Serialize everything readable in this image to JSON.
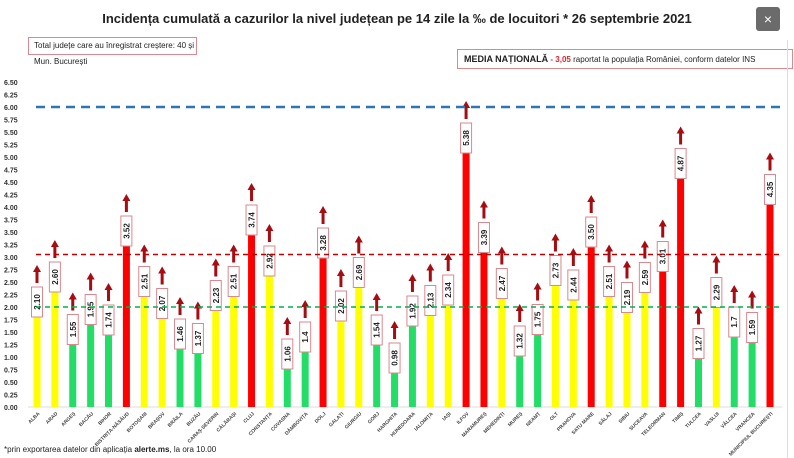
{
  "title": "Incidența cumulată a cazurilor la nivel județean pe 14 zile la ‰ de locuitori * 26 septembrie 2021",
  "note_box": "Total județe care au înregistrat creștere:  40 și Mun. București",
  "national": {
    "label": "MEDIA NAȚIONALĂ",
    "sep": " - ",
    "value": "3,05",
    "text": " raportat la populația României, conform datelor INS"
  },
  "footnote": {
    "pre": "*prin exportarea datelor din aplicația ",
    "bold": "alerte.ms",
    "post": ", la ora 10.00"
  },
  "close_label": "×",
  "chart_data": {
    "type": "bar",
    "ylim": [
      0,
      6.5
    ],
    "ytick_step": 0.25,
    "grid": false,
    "reference_lines": [
      {
        "value": 6.0,
        "color": "#2e75b6",
        "style": "dashed"
      },
      {
        "value": 3.05,
        "color": "#c00000",
        "style": "dashed"
      },
      {
        "value": 2.0,
        "color": "#00b050",
        "style": "dashed"
      }
    ],
    "colors": {
      "low": "#22dd66",
      "mid": "#ffff00",
      "high": "#ff0000",
      "arrow": "#a50d12",
      "label_border": "#d9898f"
    },
    "trend": "increase",
    "categories": [
      "ALBA",
      "ARAD",
      "ARGEȘ",
      "BACĂU",
      "BIHOR",
      "BISTRIȚA-NĂSĂUD",
      "BOTOȘANI",
      "BRAȘOV",
      "BRĂILA",
      "BUZĂU",
      "CARAȘ-SEVERIN",
      "CĂLĂRAȘI",
      "CLUJ",
      "CONSTANȚA",
      "COVASNA",
      "DÂMBOVIȚA",
      "DOLJ",
      "GALAȚI",
      "GIURGIU",
      "GORJ",
      "HARGHITA",
      "HUNEDOARA",
      "IALOMIȚA",
      "IAȘI",
      "ILFOV",
      "MARAMUREȘ",
      "MEHEDINȚI",
      "MUREȘ",
      "NEAMȚ",
      "OLT",
      "PRAHOVA",
      "SATU MARE",
      "SĂLAJ",
      "SIBIU",
      "SUCEAVA",
      "TELEORMAN",
      "TIMIȘ",
      "TULCEA",
      "VASLUI",
      "VÂLCEA",
      "VRANCEA",
      "MUNICIPIUL BUCUREȘTI"
    ],
    "values": [
      2.1,
      2.6,
      1.55,
      1.95,
      1.74,
      3.52,
      2.51,
      2.07,
      1.46,
      1.37,
      2.23,
      2.51,
      3.74,
      2.92,
      1.06,
      1.4,
      3.28,
      2.02,
      2.69,
      1.54,
      0.98,
      1.92,
      2.13,
      2.34,
      5.38,
      3.39,
      2.47,
      1.32,
      1.75,
      2.73,
      2.44,
      3.5,
      2.51,
      2.19,
      2.59,
      3.01,
      4.87,
      1.27,
      2.29,
      1.7,
      1.59,
      4.35
    ],
    "labels": [
      "2.10",
      "2.60",
      "1.55",
      "1.95",
      "1.74",
      "3.52",
      "2.51",
      "2.07",
      "1.46",
      "1.37",
      "2.23",
      "2.51",
      "3.74",
      "2.92",
      "1.06",
      "1.4",
      "3.28",
      "2.02",
      "2.69",
      "1.54",
      "0.98",
      "1.92",
      "2.13",
      "2.34",
      "5.38",
      "3.39",
      "2.47",
      "1.32",
      "1.75",
      "2.73",
      "2.44",
      "3.50",
      "2.51",
      "2.19",
      "2.59",
      "3.01",
      "4.87",
      "1.27",
      "2.29",
      "1.7",
      "1.59",
      "4.35"
    ]
  }
}
